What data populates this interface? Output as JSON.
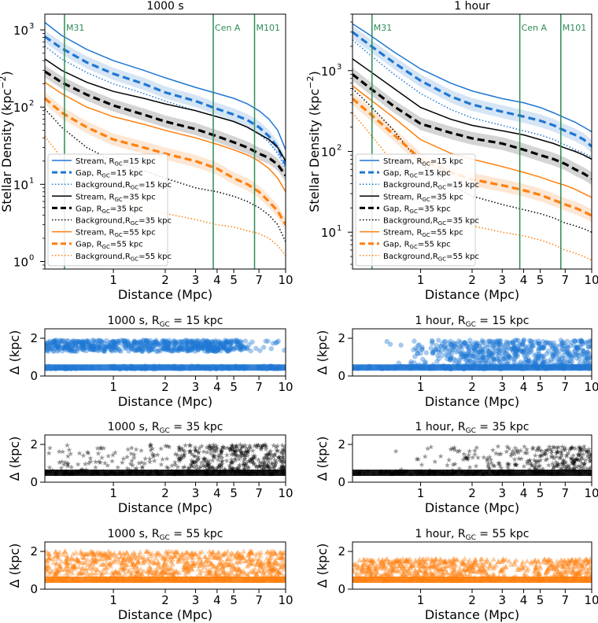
{
  "colors": {
    "r15": "#1f77d4",
    "r35": "#000000",
    "r55": "#ff7f0e",
    "band15": "#cfe0f3",
    "band35": "#cccccc",
    "band55": "#fde3cc",
    "vline": "#2e8b57"
  },
  "chart_data": [
    {
      "id": "density-1000s",
      "type": "line",
      "title": "1000 s",
      "xlabel": "Distance (Mpc)",
      "ylabel": "Stellar Density (kpc",
      "ylabel_sup": "−2",
      "ylabel_close": ")",
      "xscale": "log",
      "yscale": "log",
      "xlim": [
        0.4,
        10
      ],
      "ylim": [
        0.8,
        1600
      ],
      "xticks": [
        1,
        2,
        3,
        4,
        5,
        7,
        10
      ],
      "xtick_labels": [
        "1",
        "2",
        "3",
        "4",
        "5",
        "7",
        "10"
      ],
      "yticks": [
        1,
        10,
        100,
        1000
      ],
      "ytick_labels": [
        "10",
        "10",
        "10",
        "10"
      ],
      "ytick_sups": [
        "0",
        "1",
        "2",
        "3"
      ],
      "x": [
        0.4,
        0.5,
        0.7,
        1.0,
        1.5,
        2.0,
        3.0,
        4.0,
        5.0,
        6.0,
        7.0,
        8.0,
        9.0,
        10.0
      ],
      "galaxies": [
        {
          "name": "M31",
          "x": 0.52
        },
        {
          "name": "Cen A",
          "x": 3.8
        },
        {
          "name": "M101",
          "x": 6.6
        }
      ],
      "series": [
        {
          "name": "Stream, R",
          "sub": "GC",
          "suffix": "=15 kpc",
          "style": "solid",
          "color": "r15",
          "values": [
            1250,
            850,
            560,
            400,
            300,
            240,
            180,
            150,
            130,
            110,
            90,
            70,
            50,
            28
          ]
        },
        {
          "name": "Gap, R",
          "sub": "GC",
          "suffix": "=15 kpc",
          "style": "dashed",
          "color": "r15",
          "band": true,
          "values": [
            820,
            580,
            380,
            270,
            200,
            155,
            120,
            95,
            80,
            68,
            55,
            42,
            30,
            18
          ]
        },
        {
          "name": "Background,R",
          "sub": "GC",
          "suffix": "=15 kpc",
          "style": "dotted",
          "color": "r15",
          "values": [
            620,
            420,
            280,
            200,
            150,
            120,
            90,
            75,
            65,
            55,
            45,
            35,
            25,
            16
          ]
        },
        {
          "name": "Stream, R",
          "sub": "GC",
          "suffix": "=35 kpc",
          "style": "solid",
          "color": "r35",
          "values": [
            420,
            300,
            210,
            160,
            130,
            110,
            90,
            75,
            65,
            55,
            45,
            38,
            30,
            20
          ]
        },
        {
          "name": "Gap, R",
          "sub": "GC",
          "suffix": "=35 kpc",
          "style": "dashed",
          "color": "r35",
          "band": true,
          "values": [
            290,
            210,
            145,
            105,
            80,
            65,
            52,
            42,
            35,
            30,
            25,
            22,
            18,
            13
          ]
        },
        {
          "name": "Background,R",
          "sub": "GC",
          "suffix": "=35 kpc",
          "style": "dotted",
          "color": "r35",
          "values": [
            95,
            55,
            30,
            20,
            15,
            12,
            9,
            8,
            7,
            6,
            5,
            4,
            3,
            1.8
          ]
        },
        {
          "name": "Stream, R",
          "sub": "GC",
          "suffix": "=55 kpc",
          "style": "solid",
          "color": "r55",
          "values": [
            210,
            150,
            100,
            75,
            60,
            50,
            40,
            33,
            28,
            24,
            20,
            16,
            12,
            8
          ]
        },
        {
          "name": "Gap, R",
          "sub": "GC",
          "suffix": "=55 kpc",
          "style": "dashed",
          "color": "r55",
          "band": true,
          "values": [
            130,
            85,
            55,
            38,
            30,
            25,
            20,
            16,
            12,
            10,
            8,
            6,
            4.5,
            3
          ]
        },
        {
          "name": "Background,R",
          "sub": "GC",
          "suffix": "=55 kpc",
          "style": "dotted",
          "color": "r55",
          "values": [
            42,
            22,
            11,
            7,
            5,
            4.2,
            3.5,
            3,
            2.8,
            2.5,
            2.3,
            2,
            1.6,
            1.2
          ]
        }
      ]
    },
    {
      "id": "density-1hour",
      "type": "line",
      "title": "1 hour",
      "xlabel": "Distance (Mpc)",
      "ylabel": "Stellar Density (kpc",
      "ylabel_sup": "−2",
      "ylabel_close": ")",
      "xscale": "log",
      "yscale": "log",
      "xlim": [
        0.4,
        10
      ],
      "ylim": [
        3.5,
        5000
      ],
      "xticks": [
        1,
        2,
        3,
        4,
        5,
        7,
        10
      ],
      "xtick_labels": [
        "1",
        "2",
        "3",
        "4",
        "5",
        "7",
        "10"
      ],
      "yticks": [
        10,
        100,
        1000
      ],
      "ytick_labels": [
        "10",
        "10",
        "10"
      ],
      "ytick_sups": [
        "1",
        "2",
        "3"
      ],
      "x": [
        0.4,
        0.5,
        0.7,
        1.0,
        1.5,
        2.0,
        3.0,
        4.0,
        5.0,
        6.0,
        7.0,
        8.0,
        9.0,
        10.0
      ],
      "galaxies": [
        {
          "name": "M31",
          "x": 0.52
        },
        {
          "name": "Cen A",
          "x": 3.8
        },
        {
          "name": "M101",
          "x": 6.6
        }
      ],
      "series": [
        {
          "name": "Stream, R",
          "sub": "GC",
          "suffix": "=15 kpc",
          "style": "solid",
          "color": "r15",
          "values": [
            3800,
            2800,
            1700,
            1050,
            700,
            560,
            450,
            400,
            350,
            300,
            260,
            230,
            200,
            175
          ]
        },
        {
          "name": "Gap, R",
          "sub": "GC",
          "suffix": "=15 kpc",
          "style": "dashed",
          "color": "r15",
          "band": true,
          "values": [
            3000,
            2100,
            1250,
            750,
            480,
            380,
            310,
            270,
            240,
            210,
            180,
            160,
            140,
            115
          ]
        },
        {
          "name": "Background,R",
          "sub": "GC",
          "suffix": "=15 kpc",
          "style": "dotted",
          "color": "r15",
          "values": [
            2400,
            1600,
            900,
            520,
            330,
            260,
            210,
            180,
            160,
            140,
            120,
            105,
            95,
            85
          ]
        },
        {
          "name": "Stream, R",
          "sub": "GC",
          "suffix": "=35 kpc",
          "style": "solid",
          "color": "r35",
          "values": [
            1400,
            1000,
            600,
            350,
            250,
            210,
            180,
            160,
            140,
            125,
            110,
            100,
            90,
            80
          ]
        },
        {
          "name": "Gap, R",
          "sub": "GC",
          "suffix": "=35 kpc",
          "style": "dashed",
          "color": "r35",
          "band": true,
          "values": [
            900,
            620,
            360,
            220,
            170,
            145,
            125,
            105,
            90,
            80,
            70,
            60,
            53,
            46
          ]
        },
        {
          "name": "Background,R",
          "sub": "GC",
          "suffix": "=35 kpc",
          "style": "dotted",
          "color": "r35",
          "values": [
            600,
            380,
            180,
            70,
            38,
            28,
            22,
            19,
            17,
            15,
            13,
            12,
            11,
            10
          ]
        },
        {
          "name": "Stream, R",
          "sub": "GC",
          "suffix": "=55 kpc",
          "style": "solid",
          "color": "r55",
          "values": [
            650,
            450,
            260,
            140,
            95,
            80,
            65,
            55,
            48,
            42,
            38,
            34,
            30,
            27
          ]
        },
        {
          "name": "Gap, R",
          "sub": "GC",
          "suffix": "=55 kpc",
          "style": "dashed",
          "color": "r55",
          "band": true,
          "values": [
            450,
            300,
            160,
            80,
            55,
            45,
            38,
            33,
            29,
            25,
            22,
            20,
            18,
            16
          ]
        },
        {
          "name": "Background,R",
          "sub": "GC",
          "suffix": "=55 kpc",
          "style": "dotted",
          "color": "r55",
          "values": [
            300,
            170,
            70,
            30,
            17,
            12,
            10,
            9,
            8,
            7,
            6,
            5.5,
            5,
            4.5
          ]
        }
      ]
    },
    {
      "id": "delta-1000s-15",
      "type": "scatter",
      "title_pre": "1000 s, R",
      "title_sub": "GC",
      "title_post": " = 15 kpc",
      "xlabel": "Distance (Mpc)",
      "ylabel": "Δ (kpc)",
      "xscale": "log",
      "xlim": [
        0.4,
        10
      ],
      "ylim": [
        0,
        2.5
      ],
      "xticks": [
        1,
        2,
        3,
        4,
        5,
        7,
        10
      ],
      "xtick_labels": [
        "1",
        "2",
        "3",
        "4",
        "5",
        "7",
        "10"
      ],
      "yticks": [
        0,
        2
      ],
      "ytick_labels": [
        "0",
        "2"
      ],
      "marker": "circle",
      "color": "r15",
      "base_level": 0.45,
      "scatter_range": [
        1.3,
        1.9
      ],
      "density_profile": [
        [
          0.4,
          0.9
        ],
        [
          5.0,
          0.9
        ],
        [
          6.0,
          0.15
        ],
        [
          10,
          0.1
        ]
      ]
    },
    {
      "id": "delta-1hour-15",
      "type": "scatter",
      "title_pre": "1 hour, R",
      "title_sub": "GC",
      "title_post": " = 15 kpc",
      "xlabel": "Distance (Mpc)",
      "ylabel": "Δ (kpc)",
      "xscale": "log",
      "xlim": [
        0.4,
        10
      ],
      "ylim": [
        0,
        2.5
      ],
      "xticks": [
        1,
        2,
        3,
        4,
        5,
        7,
        10
      ],
      "xtick_labels": [
        "1",
        "2",
        "3",
        "4",
        "5",
        "7",
        "10"
      ],
      "yticks": [
        0,
        2
      ],
      "ytick_labels": [
        "0",
        "2"
      ],
      "marker": "circle",
      "color": "r15",
      "base_level": 0.45,
      "scatter_range": [
        0.5,
        1.9
      ],
      "density_profile": [
        [
          0.4,
          0
        ],
        [
          0.8,
          0.05
        ],
        [
          1.5,
          0.6
        ],
        [
          2.0,
          1.0
        ],
        [
          10,
          1.0
        ]
      ]
    },
    {
      "id": "delta-1000s-35",
      "type": "scatter",
      "title_pre": "1000 s, R",
      "title_sub": "GC",
      "title_post": " = 35 kpc",
      "xlabel": "Distance (Mpc)",
      "ylabel": "Δ (kpc)",
      "xscale": "log",
      "xlim": [
        0.4,
        10
      ],
      "ylim": [
        0,
        2.5
      ],
      "xticks": [
        1,
        2,
        3,
        4,
        5,
        7,
        10
      ],
      "xtick_labels": [
        "1",
        "2",
        "3",
        "4",
        "5",
        "7",
        "10"
      ],
      "yticks": [
        0,
        2
      ],
      "ytick_labels": [
        "0",
        "2"
      ],
      "marker": "star",
      "color": "r35",
      "base_level": 0.5,
      "scatter_range": [
        0.6,
        2.0
      ],
      "density_profile": [
        [
          0.4,
          0.15
        ],
        [
          2.0,
          0.25
        ],
        [
          3.0,
          0.6
        ],
        [
          4.0,
          0.9
        ],
        [
          10,
          1.0
        ]
      ]
    },
    {
      "id": "delta-1hour-35",
      "type": "scatter",
      "title_pre": "1 hour, R",
      "title_sub": "GC",
      "title_post": " = 35 kpc",
      "xlabel": "Distance (Mpc)",
      "ylabel": "Δ (kpc)",
      "xscale": "log",
      "xlim": [
        0.4,
        10
      ],
      "ylim": [
        0,
        2.5
      ],
      "xticks": [
        1,
        2,
        3,
        4,
        5,
        7,
        10
      ],
      "xtick_labels": [
        "1",
        "2",
        "3",
        "4",
        "5",
        "7",
        "10"
      ],
      "yticks": [
        0,
        2
      ],
      "ytick_labels": [
        "0",
        "2"
      ],
      "marker": "star",
      "color": "r35",
      "base_level": 0.5,
      "scatter_range": [
        0.6,
        1.9
      ],
      "density_profile": [
        [
          0.4,
          0
        ],
        [
          0.9,
          0.05
        ],
        [
          2.0,
          0.2
        ],
        [
          4.0,
          0.35
        ],
        [
          6.0,
          0.7
        ],
        [
          10,
          0.9
        ]
      ]
    },
    {
      "id": "delta-1000s-55",
      "type": "scatter",
      "title_pre": "1000 s, R",
      "title_sub": "GC",
      "title_post": " = 55 kpc",
      "xlabel": "Distance (Mpc)",
      "ylabel": "Δ (kpc)",
      "xscale": "log",
      "xlim": [
        0.4,
        10
      ],
      "ylim": [
        0,
        2.5
      ],
      "xticks": [
        1,
        2,
        3,
        4,
        5,
        7,
        10
      ],
      "xtick_labels": [
        "1",
        "2",
        "3",
        "4",
        "5",
        "7",
        "10"
      ],
      "yticks": [
        0,
        2
      ],
      "ytick_labels": [
        "0",
        "2"
      ],
      "marker": "triangle",
      "color": "r55",
      "base_level": 0.5,
      "scatter_range": [
        0.6,
        2.0
      ],
      "density_profile": [
        [
          0.4,
          0.8
        ],
        [
          4.0,
          0.8
        ],
        [
          7.0,
          0.9
        ],
        [
          10,
          1.0
        ]
      ]
    },
    {
      "id": "delta-1hour-55",
      "type": "scatter",
      "title_pre": "1 hour, R",
      "title_sub": "GC",
      "title_post": " = 55 kpc",
      "xlabel": "Distance (Mpc)",
      "ylabel": "Δ (kpc)",
      "xscale": "log",
      "xlim": [
        0.4,
        10
      ],
      "ylim": [
        0,
        2.5
      ],
      "xticks": [
        1,
        2,
        3,
        4,
        5,
        7,
        10
      ],
      "xtick_labels": [
        "1",
        "2",
        "3",
        "4",
        "5",
        "7",
        "10"
      ],
      "yticks": [
        0,
        2
      ],
      "ytick_labels": [
        "0",
        "2"
      ],
      "marker": "triangle",
      "color": "r55",
      "base_level": 0.5,
      "scatter_range": [
        0.6,
        1.6
      ],
      "density_profile": [
        [
          0.4,
          0.7
        ],
        [
          1.0,
          0.9
        ],
        [
          2.0,
          0.6
        ],
        [
          3.5,
          0.3
        ],
        [
          5.0,
          0.7
        ],
        [
          10,
          0.9
        ]
      ]
    }
  ]
}
